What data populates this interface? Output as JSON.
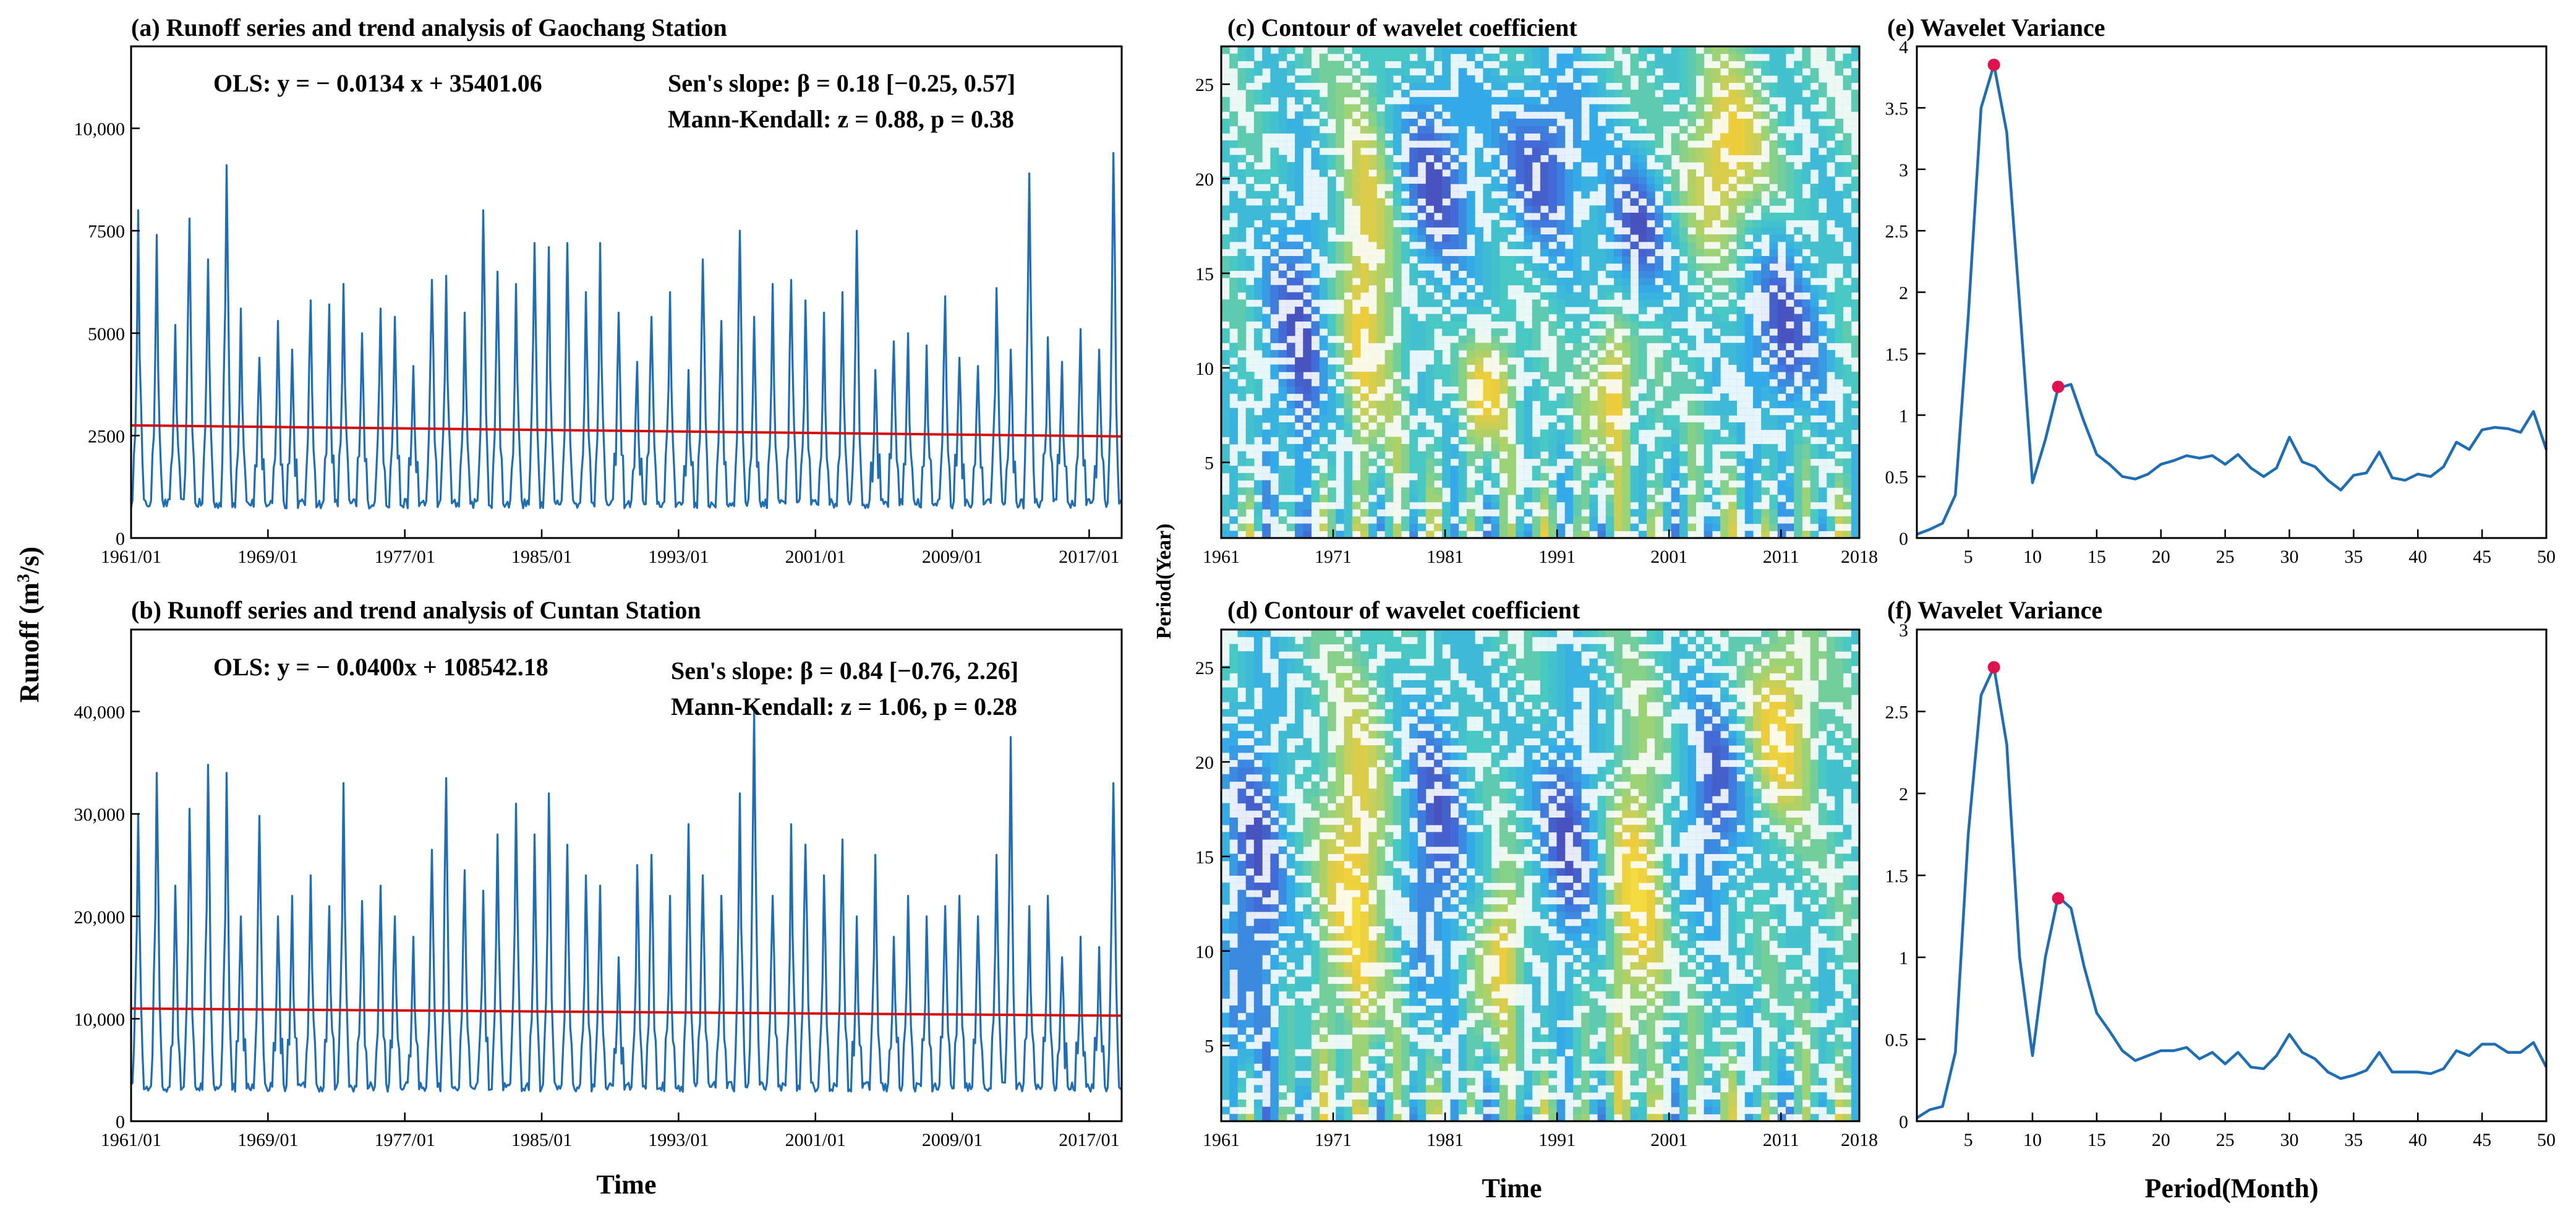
{
  "chart_data": [
    {
      "id": "a",
      "type": "line",
      "title": "(a) Runoff series and trend analysis of Gaochang Station",
      "ylabel_main": "Runoff (m",
      "ylabel_sup": "3",
      "ylabel_tail": "/s)",
      "x_tick_labels": [
        "1961/01",
        "1969/01",
        "1977/01",
        "1985/01",
        "1993/01",
        "2001/01",
        "2009/01",
        "2017/01"
      ],
      "x_tick_years": [
        1961,
        1969,
        1977,
        1985,
        1993,
        2001,
        2009,
        2017
      ],
      "x_range": [
        1961,
        2018.9
      ],
      "ylim": [
        0,
        12000
      ],
      "y_ticks": [
        0,
        2500,
        5000,
        7500,
        10000
      ],
      "y_tick_labels": [
        "0",
        "2500",
        "5000",
        "7500",
        "10,000"
      ],
      "annotations": [
        "OLS:  y = − 0.0134 x + 35401.06",
        "Sen's slope:  β = 0.18 [−0.25, 0.57]",
        "Mann-Kendall: z = 0.88, p = 0.38"
      ],
      "series": [
        {
          "values_annual_peak": [
            8000,
            7400,
            5200,
            7800,
            6800,
            9100,
            5600,
            4400,
            5300,
            4600,
            5800,
            5700,
            6200,
            5000,
            5600,
            5400,
            4200,
            6300,
            6400,
            5500,
            8000,
            6500,
            6200,
            7200,
            7100,
            7200,
            6000,
            7200,
            5500,
            4300,
            5400,
            6000,
            4100,
            6800,
            5300,
            7500,
            5400,
            6200,
            6300,
            5800,
            5500,
            6000,
            7500,
            4100,
            4800,
            5000,
            4700,
            5900,
            4400,
            4200,
            6100,
            4600,
            8900,
            4900,
            4300,
            5100,
            4600,
            9400
          ]
        },
        {
          "trend_start": 2750,
          "trend_end": 2480
        }
      ]
    },
    {
      "id": "b",
      "type": "line",
      "title": "(b) Runoff series and trend analysis of Cuntan Station",
      "x_tick_labels": [
        "1961/01",
        "1969/01",
        "1977/01",
        "1985/01",
        "1993/01",
        "2001/01",
        "2009/01",
        "2017/01"
      ],
      "x_tick_years": [
        1961,
        1969,
        1977,
        1985,
        1993,
        2001,
        2009,
        2017
      ],
      "x_range": [
        1961,
        2018.9
      ],
      "xlabel": "Time",
      "ylim": [
        0,
        48000
      ],
      "y_ticks": [
        0,
        10000,
        20000,
        30000,
        40000
      ],
      "y_tick_labels": [
        "0",
        "10,000",
        "20,000",
        "30,000",
        "40,000"
      ],
      "annotations": [
        "OLS:  y = − 0.0400x + 108542.18",
        "Sen's slope:  β = 0.84 [−0.76, 2.26]",
        "Mann-Kendall: z = 1.06, p = 0.28"
      ],
      "series": [
        {
          "values_annual_peak": [
            30000,
            34000,
            23000,
            30500,
            34800,
            34000,
            20000,
            29800,
            20000,
            22000,
            24000,
            21000,
            33000,
            21500,
            23000,
            20000,
            18000,
            26500,
            33500,
            24500,
            22500,
            28000,
            31000,
            28000,
            32000,
            27000,
            24000,
            23000,
            16000,
            25000,
            26000,
            22000,
            29000,
            24000,
            22000,
            32000,
            40000,
            22000,
            29000,
            27000,
            24000,
            27500,
            20000,
            26000,
            18000,
            22000,
            20000,
            21000,
            22000,
            20000,
            26000,
            37500,
            21000,
            22000,
            16000,
            18000,
            17000,
            33000
          ]
        },
        {
          "trend_start": 11000,
          "trend_end": 10300
        }
      ]
    },
    {
      "id": "c",
      "type": "heatmap",
      "title": "(c) Contour of wavelet coefficient",
      "ylabel": "Period(Year)",
      "x_range": [
        1961,
        2018
      ],
      "x_ticks": [
        1961,
        1971,
        1981,
        1991,
        2001,
        2011,
        2018
      ],
      "x_tick_labels": [
        "1961",
        "1971",
        "1981",
        "1991",
        "2001",
        "2011",
        "2018"
      ],
      "ylim": [
        1,
        27
      ],
      "y_ticks": [
        5,
        10,
        15,
        20,
        25
      ],
      "y_tick_labels": [
        "5",
        "10",
        "15",
        "20",
        "25"
      ],
      "features": [
        {
          "x": 1974,
          "y": 15,
          "sign": -1,
          "sx": 3.0,
          "sy": 9.5
        },
        {
          "x": 1968,
          "y": 12,
          "sign": 1,
          "sx": 3.2,
          "sy": 8.0
        },
        {
          "x": 1980,
          "y": 20,
          "sign": 1,
          "sx": 4.0,
          "sy": 6.0
        },
        {
          "x": 1985,
          "y": 9,
          "sign": -1,
          "sx": 2.0,
          "sy": 3.0
        },
        {
          "x": 1990,
          "y": 21,
          "sign": 1,
          "sx": 4.0,
          "sy": 5.0
        },
        {
          "x": 1996,
          "y": 9,
          "sign": -1,
          "sx": 2.0,
          "sy": 4.0
        },
        {
          "x": 1998,
          "y": 17,
          "sign": 1,
          "sx": 3.0,
          "sy": 4.0
        },
        {
          "x": 2006,
          "y": 21,
          "sign": -1,
          "sx": 3.5,
          "sy": 5.0
        },
        {
          "x": 2011,
          "y": 12,
          "sign": 1,
          "sx": 4.0,
          "sy": 5.0
        }
      ]
    },
    {
      "id": "d",
      "type": "heatmap",
      "title": "(d) Contour of wavelet coefficient",
      "xlabel": "Time",
      "x_range": [
        1961,
        2018
      ],
      "x_ticks": [
        1961,
        1971,
        1981,
        1991,
        2001,
        2011,
        2018
      ],
      "x_tick_labels": [
        "1961",
        "1971",
        "1981",
        "1991",
        "2001",
        "2011",
        "2018"
      ],
      "ylim": [
        1,
        27
      ],
      "y_ticks": [
        5,
        10,
        15,
        20,
        25
      ],
      "y_tick_labels": [
        "5",
        "10",
        "15",
        "20",
        "25"
      ],
      "features": [
        {
          "x": 1964,
          "y": 14,
          "sign": 1,
          "sx": 3.0,
          "sy": 10.0
        },
        {
          "x": 1973,
          "y": 14,
          "sign": -1,
          "sx": 3.0,
          "sy": 10.0
        },
        {
          "x": 1980,
          "y": 16,
          "sign": 1,
          "sx": 3.0,
          "sy": 8.0
        },
        {
          "x": 1986,
          "y": 10,
          "sign": -1,
          "sx": 2.0,
          "sy": 4.0
        },
        {
          "x": 1992,
          "y": 16,
          "sign": 1,
          "sx": 3.0,
          "sy": 7.0
        },
        {
          "x": 1998,
          "y": 13,
          "sign": -1,
          "sx": 2.5,
          "sy": 9.0
        },
        {
          "x": 2005,
          "y": 18,
          "sign": 1,
          "sx": 3.0,
          "sy": 6.0
        },
        {
          "x": 2011,
          "y": 22,
          "sign": -1,
          "sx": 3.0,
          "sy": 5.0
        }
      ]
    },
    {
      "id": "e",
      "type": "line",
      "title": "(e) Wavelet Variance",
      "x_range": [
        1,
        50
      ],
      "x_ticks": [
        5,
        10,
        15,
        20,
        25,
        30,
        35,
        40,
        45,
        50
      ],
      "x_tick_labels": [
        "5",
        "10",
        "15",
        "20",
        "25",
        "30",
        "35",
        "40",
        "45",
        "50"
      ],
      "ylim": [
        0,
        4
      ],
      "y_ticks": [
        0,
        0.5,
        1,
        1.5,
        2,
        2.5,
        3,
        3.5,
        4
      ],
      "y_tick_labels": [
        "0",
        "0.5",
        "1",
        "1.5",
        "2",
        "2.5",
        "3",
        "3.5",
        "4"
      ],
      "x": [
        1,
        2,
        3,
        4,
        5,
        6,
        7,
        8,
        9,
        10,
        11,
        12,
        13,
        14,
        15,
        16,
        17,
        18,
        19,
        20,
        21,
        22,
        23,
        24,
        25,
        26,
        27,
        28,
        29,
        30,
        31,
        32,
        33,
        34,
        35,
        36,
        37,
        38,
        39,
        40,
        41,
        42,
        43,
        44,
        45,
        46,
        47,
        48,
        49,
        50
      ],
      "series": [
        {
          "values": [
            0.03,
            0.07,
            0.12,
            0.35,
            1.8,
            3.5,
            3.85,
            3.3,
            1.9,
            0.45,
            0.8,
            1.22,
            1.25,
            0.95,
            0.68,
            0.6,
            0.5,
            0.48,
            0.52,
            0.6,
            0.63,
            0.67,
            0.65,
            0.67,
            0.6,
            0.68,
            0.57,
            0.5,
            0.57,
            0.82,
            0.62,
            0.58,
            0.47,
            0.39,
            0.51,
            0.53,
            0.7,
            0.49,
            0.47,
            0.52,
            0.5,
            0.58,
            0.78,
            0.72,
            0.88,
            0.9,
            0.89,
            0.86,
            1.03,
            0.72
          ]
        }
      ],
      "peaks": [
        {
          "x": 7,
          "y": 3.85
        },
        {
          "x": 12,
          "y": 1.23
        }
      ]
    },
    {
      "id": "f",
      "type": "line",
      "title": "(f) Wavelet Variance",
      "xlabel": "Period(Month)",
      "x_range": [
        1,
        50
      ],
      "x_ticks": [
        5,
        10,
        15,
        20,
        25,
        30,
        35,
        40,
        45,
        50
      ],
      "x_tick_labels": [
        "5",
        "10",
        "15",
        "20",
        "25",
        "30",
        "35",
        "40",
        "45",
        "50"
      ],
      "ylim": [
        0,
        3
      ],
      "y_ticks": [
        0,
        0.5,
        1,
        1.5,
        2,
        2.5,
        3
      ],
      "y_tick_labels": [
        "0",
        "0.5",
        "1",
        "1.5",
        "2",
        "2.5",
        "3"
      ],
      "x": [
        1,
        2,
        3,
        4,
        5,
        6,
        7,
        8,
        9,
        10,
        11,
        12,
        13,
        14,
        15,
        16,
        17,
        18,
        19,
        20,
        21,
        22,
        23,
        24,
        25,
        26,
        27,
        28,
        29,
        30,
        31,
        32,
        33,
        34,
        35,
        36,
        37,
        38,
        39,
        40,
        41,
        42,
        43,
        44,
        45,
        46,
        47,
        48,
        49,
        50
      ],
      "series": [
        {
          "values": [
            0.02,
            0.07,
            0.09,
            0.42,
            1.75,
            2.6,
            2.77,
            2.3,
            1.0,
            0.4,
            1.0,
            1.37,
            1.3,
            0.95,
            0.66,
            0.55,
            0.43,
            0.37,
            0.4,
            0.43,
            0.43,
            0.45,
            0.38,
            0.42,
            0.35,
            0.42,
            0.33,
            0.32,
            0.4,
            0.53,
            0.42,
            0.38,
            0.3,
            0.26,
            0.28,
            0.31,
            0.42,
            0.3,
            0.3,
            0.3,
            0.29,
            0.32,
            0.43,
            0.4,
            0.47,
            0.47,
            0.42,
            0.42,
            0.48,
            0.33
          ]
        }
      ],
      "peaks": [
        {
          "x": 7,
          "y": 2.77
        },
        {
          "x": 12,
          "y": 1.36
        }
      ]
    }
  ],
  "colors": {
    "runoff_line": "#1f6eb4",
    "trend_line": "#d01010",
    "variance_line": "#1f6eb4",
    "peak_marker": "#e0114f",
    "contour_colormap": [
      "#3b2aa3",
      "#2d5fd6",
      "#1fa3e6",
      "#36c3bd",
      "#8fcf6a",
      "#e8c62a",
      "#f9e42a"
    ]
  }
}
